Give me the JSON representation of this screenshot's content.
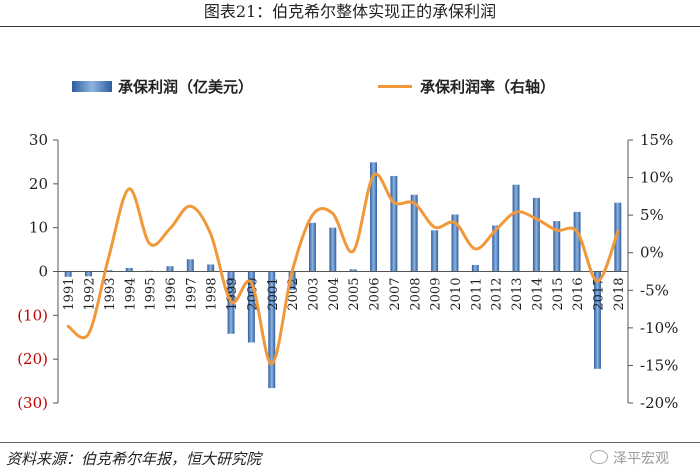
{
  "title": "图表21：伯克希尔整体实现正的承保利润",
  "source": "资料来源：伯克希尔年报，恒大研究院",
  "watermark": "泽平宏观",
  "colors": {
    "bar": "#4f7fbf",
    "line": "#f0983a",
    "neg_tick": "#c00000",
    "axis": "#555555"
  },
  "chart_data": {
    "type": "bar+line",
    "categories": [
      "1991",
      "1992",
      "1993",
      "1994",
      "1995",
      "1996",
      "1997",
      "1998",
      "1999",
      "2000",
      "2001",
      "2002",
      "2003",
      "2004",
      "2005",
      "2006",
      "2007",
      "2008",
      "2009",
      "2010",
      "2011",
      "2012",
      "2013",
      "2014",
      "2015",
      "2016",
      "2017",
      "2018"
    ],
    "series": [
      {
        "name": "承保利润（亿美元）",
        "type": "bar",
        "axis": "left",
        "values": [
          -1.2,
          -1.1,
          0.3,
          0.8,
          0.2,
          1.2,
          2.8,
          1.6,
          -14.2,
          -16.2,
          -26.6,
          -4.2,
          11.1,
          10.0,
          0.5,
          24.9,
          21.8,
          17.5,
          9.4,
          13.0,
          1.5,
          10.5,
          19.8,
          16.8,
          11.5,
          13.6,
          -22.2,
          15.7
        ]
      },
      {
        "name": "承保利润率（右轴）",
        "type": "line",
        "axis": "right",
        "values": [
          -9.8,
          -10.8,
          -0.5,
          8.5,
          1.2,
          3.2,
          6.2,
          2.5,
          -6.5,
          -4.0,
          -14.8,
          -2.5,
          5.0,
          5.2,
          0.2,
          10.3,
          6.7,
          6.6,
          3.4,
          4.0,
          0.5,
          3.0,
          5.4,
          4.5,
          3.0,
          2.8,
          -3.8,
          2.8
        ]
      }
    ],
    "left_axis": {
      "ylim": [
        -30,
        30
      ],
      "ticks": [
        "30",
        "20",
        "10",
        "0",
        "(10)",
        "(20)",
        "(30)"
      ]
    },
    "right_axis": {
      "ylim": [
        -20,
        15
      ],
      "ticks": [
        "15%",
        "10%",
        "5%",
        "0%",
        "-5%",
        "-10%",
        "-15%",
        "-20%"
      ]
    },
    "legend": {
      "position": "top",
      "bar_label": "承保利润（亿美元）",
      "line_label": "承保利润率（右轴）"
    },
    "grid": false
  }
}
